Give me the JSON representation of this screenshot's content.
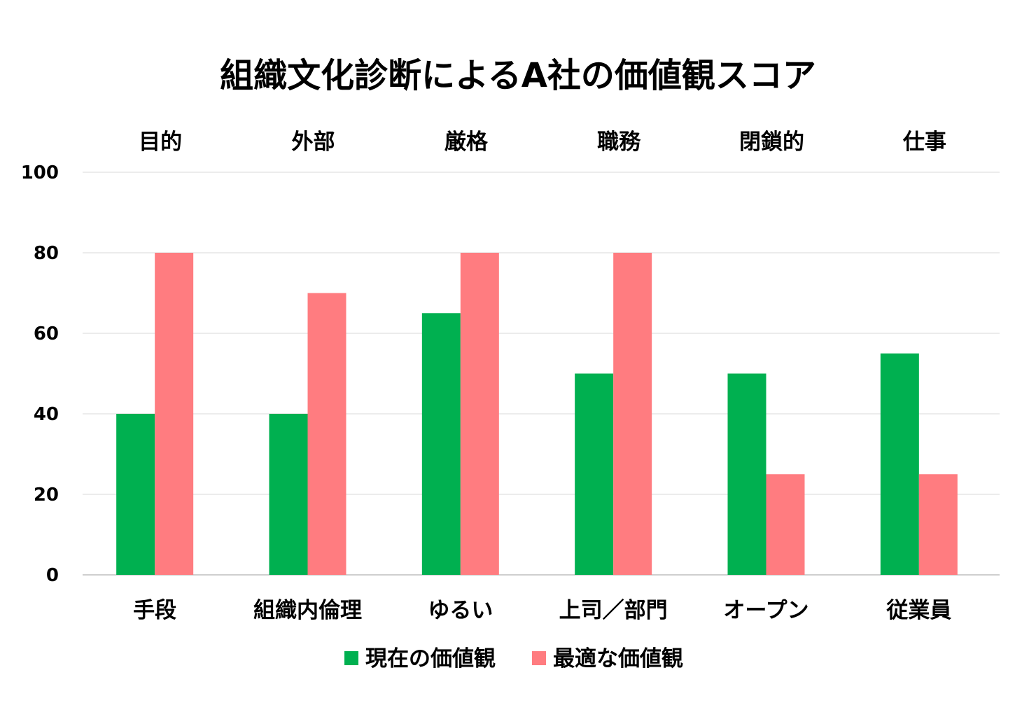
{
  "chart_data": {
    "type": "bar",
    "title": "組織文化診断によるA社の価値観スコア",
    "xlabel": "",
    "ylabel": "",
    "ylim": [
      0,
      100
    ],
    "yticks": [
      0,
      20,
      40,
      60,
      80,
      100
    ],
    "grid": true,
    "legend_position": "bottom",
    "top_categories": [
      "目的",
      "外部",
      "厳格",
      "職務",
      "閉鎖的",
      "仕事"
    ],
    "categories": [
      "手段",
      "組織内倫理",
      "ゆるい",
      "上司／部門",
      "オープン",
      "従業員"
    ],
    "series": [
      {
        "name": "現在の価値観",
        "color": "#00b050",
        "values": [
          40,
          40,
          65,
          50,
          50,
          55
        ]
      },
      {
        "name": "最適な価値観",
        "color": "#ff7c80",
        "values": [
          80,
          70,
          80,
          80,
          25,
          25
        ]
      }
    ]
  }
}
